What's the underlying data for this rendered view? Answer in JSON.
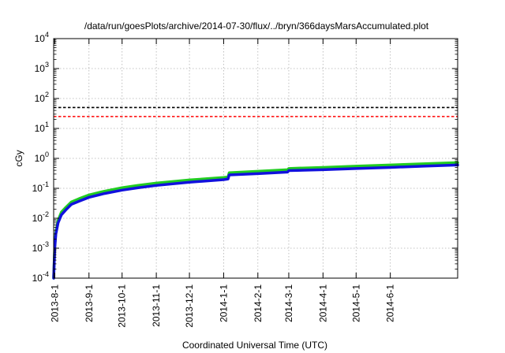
{
  "chart_data": {
    "type": "line",
    "title": "/data/run/goesPlots/archive/2014-07-30/flux/../bryn/366daysMarsAccumulated.plot",
    "xlabel": "Coordinated Universal Time (UTC)",
    "ylabel": "cGy",
    "x_range": [
      "2013-07-31",
      "2014-08-01"
    ],
    "ylim": [
      0.0001,
      10000
    ],
    "yscale": "log",
    "grid": true,
    "x_ticks": [
      "2013-8-1",
      "2013-9-1",
      "2013-10-1",
      "2013-11-1",
      "2013-12-1",
      "2014-1-1",
      "2014-2-1",
      "2014-3-1",
      "2014-4-1",
      "2014-5-1",
      "2014-6-1"
    ],
    "y_ticks": [
      {
        "base": "10",
        "exp": "-4",
        "value": 0.0001
      },
      {
        "base": "10",
        "exp": "-3",
        "value": 0.001
      },
      {
        "base": "10",
        "exp": "-2",
        "value": 0.01
      },
      {
        "base": "10",
        "exp": "-1",
        "value": 0.1
      },
      {
        "base": "10",
        "exp": "0",
        "value": 1
      },
      {
        "base": "10",
        "exp": "1",
        "value": 10
      },
      {
        "base": "10",
        "exp": "2",
        "value": 100
      },
      {
        "base": "10",
        "exp": "3",
        "value": 1000
      },
      {
        "base": "10",
        "exp": "4",
        "value": 10000
      }
    ],
    "hlines": [
      {
        "y": 50,
        "color": "#000000",
        "style": "dashed"
      },
      {
        "y": 25,
        "color": "#ff0000",
        "style": "dashed"
      }
    ],
    "series": [
      {
        "color": "#22cc22",
        "x": [
          "2013-07-31",
          "2013-08-01",
          "2013-08-02",
          "2013-08-04",
          "2013-08-07",
          "2013-08-11",
          "2013-08-16",
          "2013-08-23",
          "2013-09-01",
          "2013-09-15",
          "2013-10-01",
          "2013-10-15",
          "2013-11-01",
          "2013-12-01",
          "2014-01-01",
          "2014-01-05",
          "2014-01-06",
          "2014-02-01",
          "2014-02-28",
          "2014-03-01",
          "2014-04-01",
          "2014-05-01",
          "2014-06-01",
          "2014-07-01",
          "2014-08-01"
        ],
        "values": [
          0.0001,
          0.0012,
          0.0035,
          0.0085,
          0.016,
          0.023,
          0.035,
          0.045,
          0.06,
          0.08,
          0.105,
          0.125,
          0.15,
          0.19,
          0.23,
          0.24,
          0.33,
          0.37,
          0.42,
          0.46,
          0.5,
          0.55,
          0.6,
          0.66,
          0.72
        ]
      },
      {
        "color": "#1111dd",
        "x": [
          "2013-07-31",
          "2013-08-01",
          "2013-08-02",
          "2013-08-04",
          "2013-08-07",
          "2013-08-11",
          "2013-08-16",
          "2013-08-23",
          "2013-09-01",
          "2013-09-15",
          "2013-10-01",
          "2013-10-15",
          "2013-11-01",
          "2013-12-01",
          "2014-01-01",
          "2014-01-05",
          "2014-01-06",
          "2014-02-01",
          "2014-02-28",
          "2014-03-01",
          "2014-04-01",
          "2014-05-01",
          "2014-06-01",
          "2014-07-01",
          "2014-08-01"
        ],
        "values": [
          0.0001,
          0.001,
          0.003,
          0.007,
          0.013,
          0.019,
          0.029,
          0.037,
          0.05,
          0.067,
          0.087,
          0.104,
          0.125,
          0.16,
          0.195,
          0.205,
          0.28,
          0.31,
          0.35,
          0.39,
          0.42,
          0.46,
          0.5,
          0.55,
          0.6
        ]
      }
    ]
  }
}
